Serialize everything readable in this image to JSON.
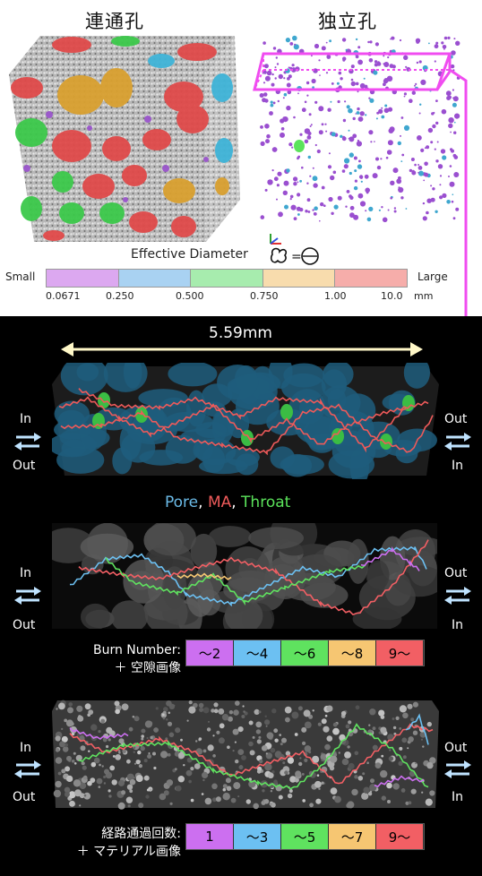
{
  "top": {
    "left_title": "連通孔",
    "right_title": "独立孔"
  },
  "effective_diameter": {
    "label": "Effective Diameter",
    "small": "Small",
    "large": "Large",
    "colors": [
      "#dca8f0",
      "#a9d2f2",
      "#a7ecae",
      "#f8dcad",
      "#f6adaa"
    ],
    "ticks": [
      "0.0671",
      "0.250",
      "0.500",
      "0.750",
      "1.00",
      "10.0"
    ],
    "unit": "mm"
  },
  "panel1": {
    "scale_label": "5.59mm",
    "left_in": "In",
    "left_out": "Out",
    "right_out": "Out",
    "right_in": "In",
    "caption_pore": "Pore",
    "caption_sep1": ", ",
    "caption_ma": "MA",
    "caption_sep2": ", ",
    "caption_throat": "Throat",
    "colors": {
      "pore": "#6bbbe8",
      "ma": "#ee5a5a",
      "throat": "#5be35b"
    }
  },
  "panel2": {
    "left_in": "In",
    "left_out": "Out",
    "right_out": "Out",
    "right_in": "In",
    "caption_line1": "Burn Number:",
    "caption_line2": "＋ 空隙画像",
    "legend": [
      {
        "label": "〜2",
        "color": "#cc6ff0"
      },
      {
        "label": "〜4",
        "color": "#6cc0f2"
      },
      {
        "label": "〜6",
        "color": "#5fe25f"
      },
      {
        "label": "〜8",
        "color": "#f6c672"
      },
      {
        "label": "9〜",
        "color": "#f25f64"
      }
    ]
  },
  "panel3": {
    "left_in": "In",
    "left_out": "Out",
    "right_out": "Out",
    "right_in": "In",
    "caption_line1": "経路通過回数:",
    "caption_line2": "＋ マテリアル画像",
    "legend": [
      {
        "label": "1",
        "color": "#cc6ff0"
      },
      {
        "label": "〜3",
        "color": "#6cc0f2"
      },
      {
        "label": "〜5",
        "color": "#5fe25f"
      },
      {
        "label": "〜7",
        "color": "#f6c672"
      },
      {
        "label": "9〜",
        "color": "#f25f64"
      }
    ]
  }
}
